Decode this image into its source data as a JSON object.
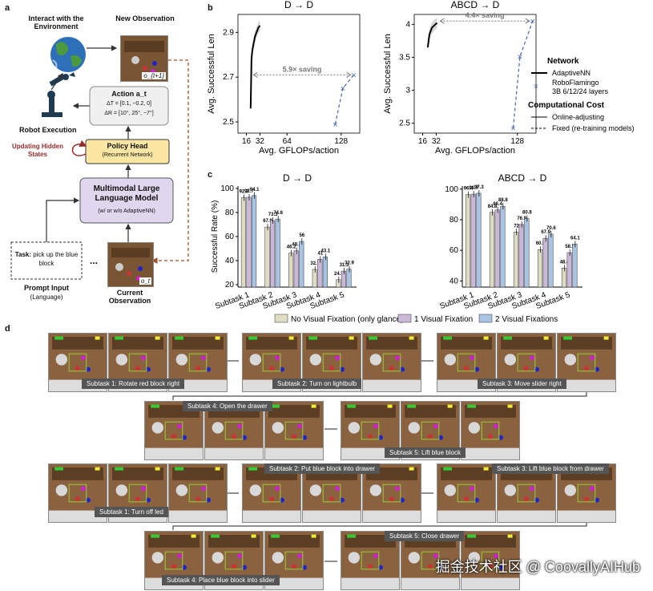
{
  "panel_labels": {
    "a": "a",
    "b": "b",
    "c": "c",
    "d": "d"
  },
  "panel_a": {
    "interact_label": "Interact with the Environment",
    "new_obs_label": "New Observation",
    "new_obs_symbol": "o_{t+1}",
    "action_title": "Action a_t",
    "action_line1": "ΔT = [0.1, −0.2, 0]",
    "action_line2": "ΔR = [10°, 25°, −7°]",
    "robot_exec_label": "Robot Execution",
    "updating_label": "Updating Hidden States",
    "policy_head_title": "Policy Head",
    "policy_head_sub": "(Recurrent Network)",
    "mllm_title": "Multimodal Large Language Model",
    "mllm_sub": "(w/ or w/o AdaptiveNN)",
    "task_prefix": "Task:",
    "task_text": "pick up the blue block",
    "prompt_label": "Prompt Input",
    "prompt_sub": "(Language)",
    "ellipsis": "...",
    "current_obs_label": "Current Observation",
    "current_obs_symbol": "o_t"
  },
  "chart_data": [
    {
      "id": "b-left",
      "type": "line",
      "title": "D → D",
      "xlabel": "Avg. GFLOPs/action",
      "ylabel": "Avg. Successful Len",
      "xticks": [
        16,
        32,
        64,
        128
      ],
      "yticks": [
        2.5,
        2.7,
        2.9
      ],
      "xlim": [
        6,
        150
      ],
      "ylim": [
        2.45,
        2.98
      ],
      "series": [
        {
          "name": "AdaptiveNN",
          "style": "solid",
          "x": [
            21,
            22,
            23,
            26,
            30,
            32
          ],
          "y": [
            2.56,
            2.78,
            2.82,
            2.88,
            2.92,
            2.93
          ]
        },
        {
          "name": "RoboFlamingo 3B 6/12/24 layers",
          "style": "dashed-markers",
          "x": [
            121,
            130,
            143
          ],
          "y": [
            2.49,
            2.65,
            2.71
          ]
        }
      ],
      "annotation": "5.9× saving"
    },
    {
      "id": "b-right",
      "type": "line",
      "title": "ABCD → D",
      "xlabel": "Avg. GFLOPs/action",
      "ylabel": "Avg. Successful Len",
      "xticks": [
        16,
        32,
        128
      ],
      "yticks": [
        2.5,
        3.0,
        3.5,
        4.0
      ],
      "xlim": [
        6,
        150
      ],
      "ylim": [
        2.35,
        4.15
      ],
      "series": [
        {
          "name": "AdaptiveNN",
          "style": "solid",
          "x": [
            22,
            24,
            27,
            31,
            33
          ],
          "y": [
            3.65,
            3.85,
            3.95,
            4.0,
            4.02
          ]
        },
        {
          "name": "RoboFlamingo 3B 6/12/24 layers",
          "style": "dashed-markers",
          "x": [
            123,
            131,
            146
          ],
          "y": [
            2.43,
            3.51,
            4.05
          ]
        }
      ],
      "annotation": "4.4× saving"
    },
    {
      "id": "c-left",
      "type": "bar",
      "title": "D → D",
      "ylabel": "Successful Rate (%)",
      "categories": [
        "Subtask 1",
        "Subtask 2",
        "Subtask 3",
        "Subtask 4",
        "Subtask 5"
      ],
      "yticks": [
        20,
        40,
        60,
        80,
        100
      ],
      "ylim": [
        18,
        102
      ],
      "series": [
        {
          "name": "No Visual Fixation (only glance)",
          "color": "#dedcc4",
          "values": [
            92.3,
            67.9,
            46.2,
            32.7,
            24.1
          ]
        },
        {
          "name": "1 Visual Fixation",
          "color": "#c9b8d8",
          "values": [
            92.7,
            73.3,
            48.2,
            41.0,
            31.3
          ]
        },
        {
          "name": "2 Visual Fixations",
          "color": "#a9c3e2",
          "values": [
            94.1,
            74.6,
            56.0,
            43.1,
            32.9
          ]
        }
      ]
    },
    {
      "id": "c-right",
      "type": "bar",
      "title": "ABCD → D",
      "categories": [
        "Subtask 1",
        "Subtask 2",
        "Subtask 3",
        "Subtask 4",
        "Subtask 5"
      ],
      "yticks": [
        40,
        60,
        80,
        100
      ],
      "ylim": [
        36,
        102
      ],
      "series": [
        {
          "name": "No Visual Fixation (only glance)",
          "color": "#dedcc4",
          "values": [
            96.4,
            84.8,
            72.0,
            60.5,
            48.4
          ]
        },
        {
          "name": "1 Visual Fixation",
          "color": "#c9b8d8",
          "values": [
            96.7,
            86.4,
            76.9,
            67.9,
            58.5
          ]
        },
        {
          "name": "2 Visual Fixations",
          "color": "#a9c3e2",
          "values": [
            97.3,
            88.8,
            80.8,
            70.6,
            64.1
          ]
        }
      ]
    }
  ],
  "legend_b": {
    "network_title": "Network",
    "adaptive": "AdaptiveNN",
    "roboflamingo_l1": "RoboFlamingo",
    "roboflamingo_l2": "3B 6/12/24 layers",
    "cost_title": "Computational Cost",
    "online": "Online-adjusting",
    "fixed": "Fixed (re-training models)"
  },
  "panel_d": {
    "captions": [
      "Subtask 1: Rotate red block right",
      "Subtask 2: Turn on lightbulb",
      "Subtask 3: Move slider right",
      "Subtask 4: Open the drawer",
      "Subtask 5: Lift blue block",
      "Subtask 1: Turn off led",
      "Subtask 2: Put blue block into drawer",
      "Subtask 3: Lift blue block from drawer",
      "Subtask 4: Place blue block into slider",
      "Subtask 5: Close drawer"
    ]
  },
  "watermark": "掘金技术社区 @ CoovallyAIHub"
}
